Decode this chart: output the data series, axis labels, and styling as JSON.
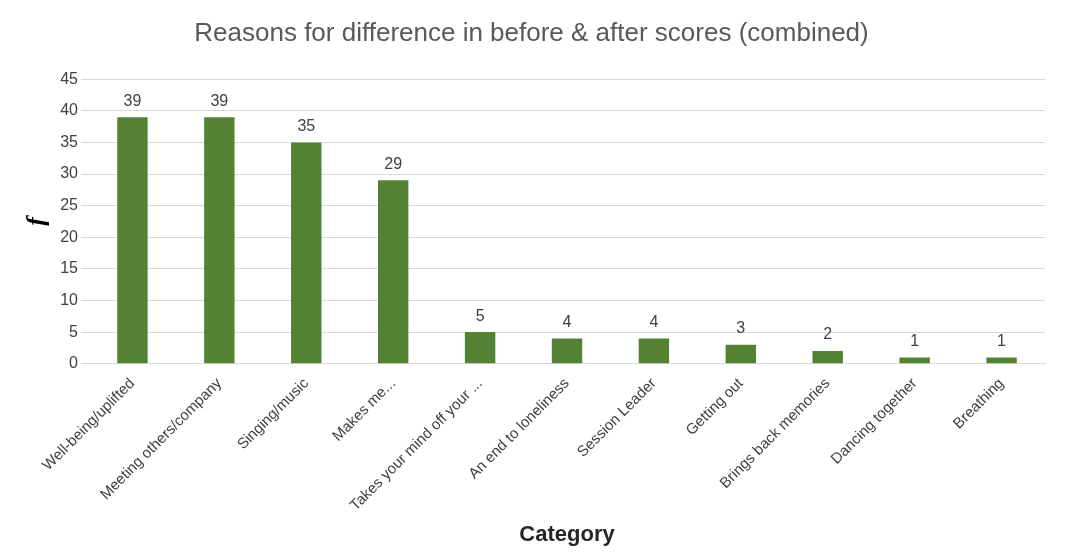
{
  "chart_data": {
    "type": "bar",
    "title": "Reasons for difference in before & after scores (combined)",
    "xlabel": "Category",
    "ylabel": "f",
    "categories": [
      "Well-being/uplifted",
      "Meeting others/company",
      "Singing/music",
      "Makes me...",
      "Takes your mind off your ...",
      "An end to loneliness",
      "Session Leader",
      "Getting out",
      "Brings back memories",
      "Dancing together",
      "Breathing"
    ],
    "values": [
      39,
      39,
      35,
      29,
      5,
      4,
      4,
      3,
      2,
      1,
      1
    ],
    "color": "#548235",
    "ylim": [
      0,
      45
    ],
    "yticks": [
      0,
      5,
      10,
      15,
      20,
      25,
      30,
      35,
      40,
      45
    ],
    "grid": "y",
    "data_labels": true,
    "legend": false
  }
}
